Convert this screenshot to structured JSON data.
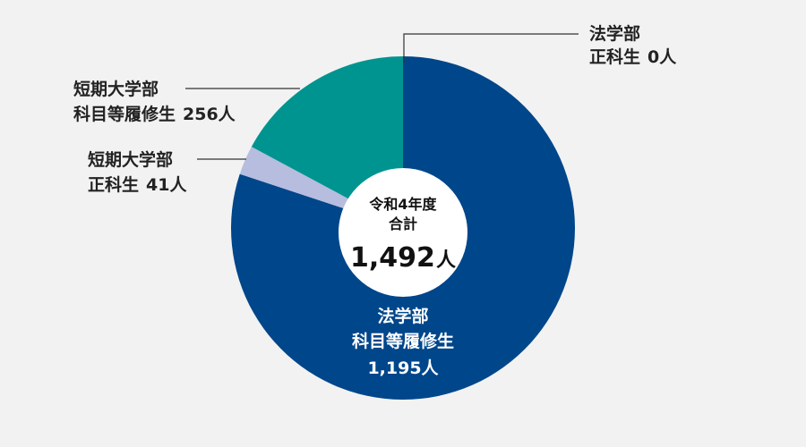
{
  "chart_data": {
    "type": "pie",
    "style": "donut",
    "center": {
      "line1": "令和4年度",
      "line2": "合計",
      "total": "1,492",
      "unit": "人"
    },
    "slices": [
      {
        "label_line1": "法学部",
        "label_line2": "正科生",
        "value": 0,
        "value_text": "0人",
        "color": "#00468b"
      },
      {
        "label_line1": "法学部",
        "label_line2": "科目等履修生",
        "value": 1195,
        "value_text": "1,195人",
        "color": "#00468b"
      },
      {
        "label_line1": "短期大学部",
        "label_line2": "正科生",
        "value": 41,
        "value_text": "41人",
        "color": "#b7bddf"
      },
      {
        "label_line1": "短期大学部",
        "label_line2": "科目等履修生",
        "value": 256,
        "value_text": "256人",
        "color": "#009490"
      }
    ],
    "colors": {
      "leader_line": "#333333",
      "center_fill": "#ffffff",
      "background": "#f2f2f2"
    }
  }
}
